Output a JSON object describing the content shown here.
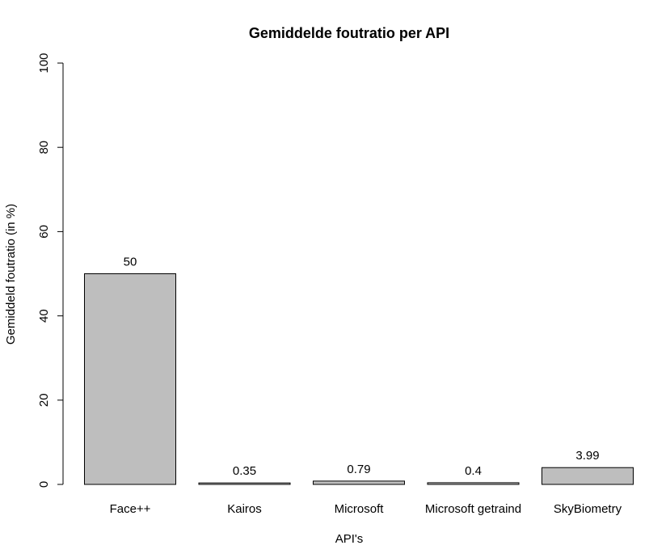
{
  "chart_data": {
    "type": "bar",
    "title": "Gemiddelde foutratio per API",
    "xlabel": "API's",
    "ylabel": "Gemiddeld foutratio (in %)",
    "ylim": [
      0,
      100
    ],
    "yticks": [
      0,
      20,
      40,
      60,
      80,
      100
    ],
    "categories": [
      "Face++",
      "Kairos",
      "Microsoft",
      "Microsoft getraind",
      "SkyBiometry"
    ],
    "values": [
      50,
      0.35,
      0.79,
      0.4,
      3.99
    ],
    "value_labels": [
      "50",
      "0.35",
      "0.79",
      "0.4",
      "3.99"
    ],
    "grid": false,
    "legend": "none",
    "colors": {
      "bar_fill": "#bebebe",
      "bar_stroke": "#000000"
    }
  }
}
